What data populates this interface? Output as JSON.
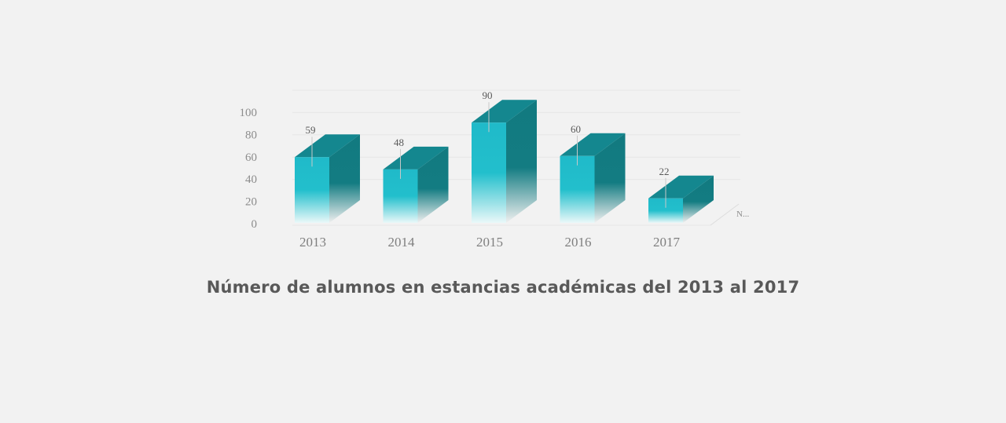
{
  "chart_data": {
    "type": "bar",
    "style": "3d-column",
    "categories": [
      "2013",
      "2014",
      "2015",
      "2016",
      "2017"
    ],
    "values": [
      59,
      48,
      90,
      60,
      22
    ],
    "depth_label": "N...",
    "y_ticks": [
      "0",
      "20",
      "40",
      "60",
      "80",
      "100"
    ],
    "ylim": [
      0,
      100
    ],
    "grid": true,
    "data_labels": true,
    "title": "",
    "xlabel": "",
    "ylabel": ""
  },
  "caption": "Número de alumnos en estancias académicas del 2013 al 2017",
  "colors": {
    "bar_front": "#20bac9",
    "bar_top": "#14878f",
    "bar_side": "#127a80",
    "background": "#f2f2f2"
  }
}
